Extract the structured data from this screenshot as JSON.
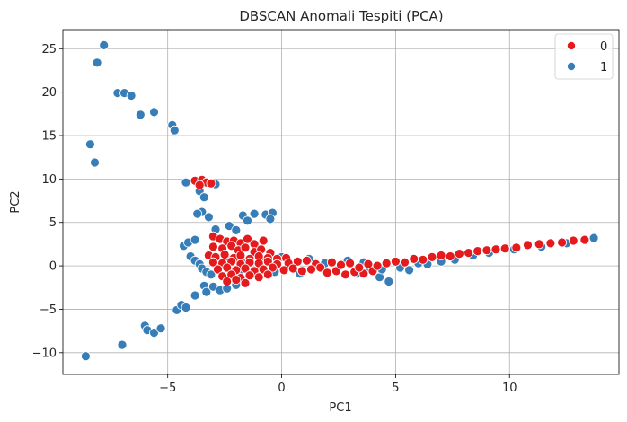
{
  "chart_data": {
    "type": "scatter",
    "title": "DBSCAN Anomali Tespiti (PCA)",
    "xlabel": "PC1",
    "ylabel": "PC2",
    "xlim": [
      -9.6,
      14.8
    ],
    "ylim": [
      -12.5,
      27.2
    ],
    "xticks": [
      -5,
      0,
      5,
      10
    ],
    "yticks": [
      -10,
      -5,
      0,
      5,
      10,
      15,
      20,
      25
    ],
    "grid": true,
    "legend_position": "top-right",
    "colors": {
      "0": "#e41a1c",
      "1": "#377eb8"
    },
    "series": [
      {
        "name": "0",
        "color": "#e41a1c",
        "points": [
          [
            -3.8,
            9.8
          ],
          [
            -3.5,
            9.9
          ],
          [
            -3.3,
            9.6
          ],
          [
            -3.6,
            9.3
          ],
          [
            -3.1,
            9.5
          ],
          [
            -3.0,
            3.4
          ],
          [
            -2.7,
            3.1
          ],
          [
            -2.4,
            2.8
          ],
          [
            -2.1,
            2.9
          ],
          [
            -1.8,
            2.6
          ],
          [
            -1.5,
            3.1
          ],
          [
            -1.2,
            2.5
          ],
          [
            -0.8,
            2.9
          ],
          [
            -3.0,
            2.2
          ],
          [
            -2.6,
            2.0
          ],
          [
            -2.2,
            2.3
          ],
          [
            -1.9,
            1.8
          ],
          [
            -1.6,
            2.1
          ],
          [
            -1.2,
            1.6
          ],
          [
            -0.9,
            1.9
          ],
          [
            -0.5,
            1.5
          ],
          [
            -3.2,
            1.2
          ],
          [
            -2.9,
            1.0
          ],
          [
            -2.5,
            1.3
          ],
          [
            -2.1,
            0.9
          ],
          [
            -1.8,
            1.2
          ],
          [
            -1.4,
            0.8
          ],
          [
            -1.0,
            1.1
          ],
          [
            -0.6,
            0.9
          ],
          [
            -0.2,
            0.8
          ],
          [
            0.2,
            0.9
          ],
          [
            -3.0,
            0.4
          ],
          [
            -2.6,
            0.3
          ],
          [
            -2.2,
            0.5
          ],
          [
            -1.8,
            0.2
          ],
          [
            -1.4,
            0.4
          ],
          [
            -1.0,
            0.3
          ],
          [
            -0.6,
            0.5
          ],
          [
            -0.2,
            0.2
          ],
          [
            0.3,
            0.3
          ],
          [
            0.7,
            0.5
          ],
          [
            1.1,
            0.6
          ],
          [
            1.5,
            0.2
          ],
          [
            -2.8,
            -0.4
          ],
          [
            -2.4,
            -0.2
          ],
          [
            -2.0,
            -0.5
          ],
          [
            -1.6,
            -0.3
          ],
          [
            -1.2,
            -0.6
          ],
          [
            -0.8,
            -0.4
          ],
          [
            -0.4,
            -0.2
          ],
          [
            0.1,
            -0.5
          ],
          [
            0.5,
            -0.3
          ],
          [
            0.9,
            -0.6
          ],
          [
            1.3,
            -0.4
          ],
          [
            1.7,
            -0.2
          ],
          [
            -2.6,
            -1.2
          ],
          [
            -2.2,
            -1.0
          ],
          [
            -1.8,
            -1.4
          ],
          [
            -1.4,
            -1.1
          ],
          [
            -1.0,
            -1.3
          ],
          [
            -0.6,
            -1.0
          ],
          [
            -2.4,
            -1.8
          ],
          [
            -2.0,
            -1.6
          ],
          [
            -1.6,
            -2.0
          ],
          [
            2.0,
            -0.8
          ],
          [
            2.4,
            -0.6
          ],
          [
            2.8,
            -1.0
          ],
          [
            3.2,
            -0.7
          ],
          [
            3.6,
            -0.9
          ],
          [
            4.0,
            -0.6
          ],
          [
            2.2,
            0.4
          ],
          [
            2.6,
            0.1
          ],
          [
            3.0,
            0.3
          ],
          [
            3.4,
            -0.2
          ],
          [
            3.8,
            0.2
          ],
          [
            4.2,
            0.0
          ],
          [
            4.6,
            0.3
          ],
          [
            5.0,
            0.5
          ],
          [
            5.4,
            0.4
          ],
          [
            5.8,
            0.8
          ],
          [
            6.2,
            0.7
          ],
          [
            6.6,
            1.0
          ],
          [
            7.0,
            1.2
          ],
          [
            7.4,
            1.1
          ],
          [
            7.8,
            1.4
          ],
          [
            8.2,
            1.5
          ],
          [
            8.6,
            1.7
          ],
          [
            9.0,
            1.8
          ],
          [
            9.4,
            1.9
          ],
          [
            9.8,
            2.0
          ],
          [
            10.3,
            2.1
          ],
          [
            10.8,
            2.4
          ],
          [
            11.3,
            2.5
          ],
          [
            11.8,
            2.6
          ],
          [
            12.3,
            2.7
          ],
          [
            12.8,
            2.9
          ],
          [
            13.3,
            3.0
          ]
        ]
      },
      {
        "name": "1",
        "color": "#377eb8",
        "points": [
          [
            -8.6,
            -10.4
          ],
          [
            -8.4,
            14.0
          ],
          [
            -8.2,
            11.9
          ],
          [
            -8.1,
            23.4
          ],
          [
            -7.8,
            25.4
          ],
          [
            -7.0,
            -9.1
          ],
          [
            -7.2,
            19.9
          ],
          [
            -6.9,
            19.9
          ],
          [
            -6.6,
            19.6
          ],
          [
            -6.2,
            17.4
          ],
          [
            -5.6,
            17.7
          ],
          [
            -6.0,
            -6.9
          ],
          [
            -5.9,
            -7.4
          ],
          [
            -5.6,
            -7.7
          ],
          [
            -5.3,
            -7.2
          ],
          [
            -4.8,
            16.2
          ],
          [
            -4.7,
            15.6
          ],
          [
            -4.6,
            -5.1
          ],
          [
            -4.4,
            -4.5
          ],
          [
            -4.2,
            -4.8
          ],
          [
            -4.2,
            9.6
          ],
          [
            -3.6,
            8.6
          ],
          [
            -3.4,
            7.9
          ],
          [
            -2.9,
            9.4
          ],
          [
            -4.3,
            2.3
          ],
          [
            -4.1,
            2.7
          ],
          [
            -3.8,
            3.0
          ],
          [
            -3.5,
            6.2
          ],
          [
            -3.7,
            6.0
          ],
          [
            -3.2,
            5.6
          ],
          [
            -2.9,
            4.2
          ],
          [
            -2.3,
            4.6
          ],
          [
            -2.0,
            4.1
          ],
          [
            -1.7,
            5.8
          ],
          [
            -1.5,
            5.2
          ],
          [
            -1.2,
            6.0
          ],
          [
            -0.7,
            5.9
          ],
          [
            -0.4,
            6.1
          ],
          [
            -0.5,
            5.4
          ],
          [
            -4.0,
            1.1
          ],
          [
            -3.8,
            0.6
          ],
          [
            -3.6,
            0.2
          ],
          [
            -3.5,
            -0.3
          ],
          [
            -3.3,
            -0.7
          ],
          [
            -3.4,
            -2.3
          ],
          [
            -3.8,
            -3.4
          ],
          [
            -3.3,
            -3.0
          ],
          [
            -3.0,
            -2.4
          ],
          [
            -2.7,
            -2.8
          ],
          [
            -2.4,
            -2.6
          ],
          [
            -2.0,
            -2.2
          ],
          [
            -3.1,
            -1.0
          ],
          [
            -2.8,
            -0.1
          ],
          [
            -2.3,
            0.7
          ],
          [
            -1.9,
            -0.8
          ],
          [
            -1.5,
            0.5
          ],
          [
            -1.1,
            -0.9
          ],
          [
            -0.7,
            0.6
          ],
          [
            -0.3,
            -0.7
          ],
          [
            0.0,
            1.0
          ],
          [
            0.8,
            -0.9
          ],
          [
            1.2,
            0.8
          ],
          [
            1.9,
            0.3
          ],
          [
            2.4,
            -0.5
          ],
          [
            2.9,
            0.6
          ],
          [
            3.3,
            -0.9
          ],
          [
            3.6,
            0.4
          ],
          [
            3.9,
            -0.3
          ],
          [
            4.3,
            -1.3
          ],
          [
            4.7,
            -1.8
          ],
          [
            4.4,
            -0.4
          ],
          [
            5.2,
            -0.2
          ],
          [
            5.6,
            -0.5
          ],
          [
            6.0,
            0.3
          ],
          [
            6.4,
            0.2
          ],
          [
            7.0,
            0.5
          ],
          [
            7.6,
            0.7
          ],
          [
            8.4,
            1.2
          ],
          [
            9.1,
            1.5
          ],
          [
            10.2,
            1.9
          ],
          [
            11.4,
            2.2
          ],
          [
            12.5,
            2.6
          ],
          [
            13.7,
            3.2
          ]
        ]
      }
    ]
  }
}
